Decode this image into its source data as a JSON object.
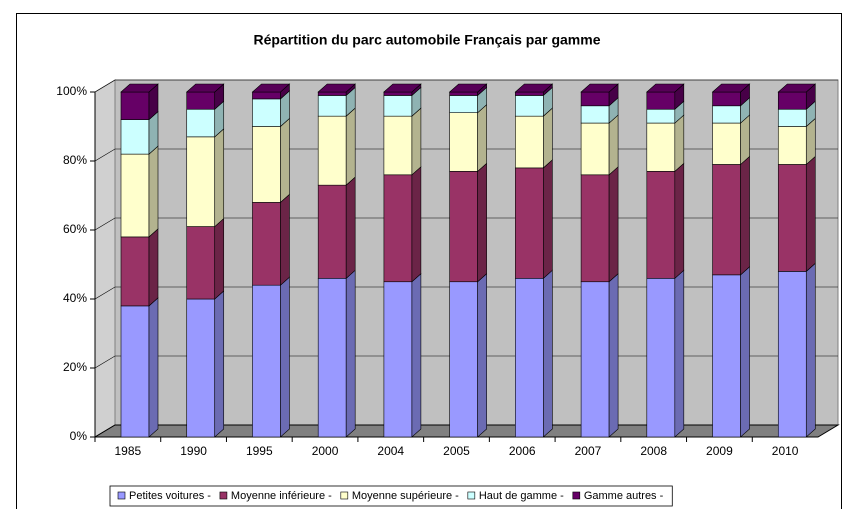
{
  "chart_data": {
    "type": "bar",
    "stacked": true,
    "title": "Répartition du parc automobile Français par gamme",
    "categories": [
      "1985",
      "1990",
      "1995",
      "2000",
      "2004",
      "2005",
      "2006",
      "2007",
      "2008",
      "2009",
      "2010"
    ],
    "series": [
      {
        "name": "Petites voitures -",
        "color": "#9999ff",
        "values": [
          38,
          40,
          44,
          46,
          45,
          45,
          46,
          45,
          46,
          47,
          48
        ]
      },
      {
        "name": "Moyenne inférieure -",
        "color": "#993366",
        "values": [
          20,
          21,
          24,
          27,
          31,
          32,
          32,
          31,
          31,
          32,
          31
        ]
      },
      {
        "name": "Moyenne supérieure -",
        "color": "#ffffcc",
        "values": [
          24,
          26,
          22,
          20,
          17,
          17,
          15,
          15,
          14,
          12,
          11
        ]
      },
      {
        "name": "Haut de gamme -",
        "color": "#ccffff",
        "values": [
          10,
          8,
          8,
          6,
          6,
          5,
          6,
          5,
          4,
          5,
          5
        ]
      },
      {
        "name": "Gamme autres -",
        "color": "#660066",
        "values": [
          8,
          5,
          2,
          1,
          1,
          1,
          1,
          4,
          5,
          4,
          5
        ]
      }
    ],
    "ylim": [
      0,
      100
    ],
    "yticks": [
      {
        "value": 0,
        "label": "0%"
      },
      {
        "value": 20,
        "label": "20%"
      },
      {
        "value": 40,
        "label": "40%"
      },
      {
        "value": 60,
        "label": "60%"
      },
      {
        "value": 80,
        "label": "80%"
      },
      {
        "value": 100,
        "label": "100%"
      }
    ],
    "grid": true,
    "legend": "bottom"
  }
}
